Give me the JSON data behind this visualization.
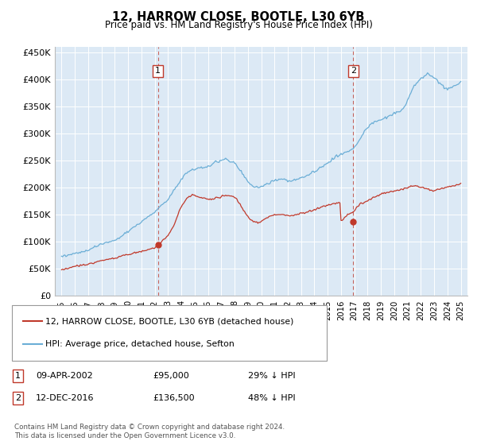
{
  "title": "12, HARROW CLOSE, BOOTLE, L30 6YB",
  "subtitle": "Price paid vs. HM Land Registry's House Price Index (HPI)",
  "hpi_color": "#6baed6",
  "price_color": "#c0392b",
  "plot_bg_color": "#dce9f5",
  "grid_color": "#ffffff",
  "ylim": [
    0,
    460000
  ],
  "yticks": [
    0,
    50000,
    100000,
    150000,
    200000,
    250000,
    300000,
    350000,
    400000,
    450000
  ],
  "xlim_start": 1995,
  "xlim_end": 2025,
  "marker1_x": 2002.25,
  "marker1_y": 95000,
  "marker2_x": 2016.92,
  "marker2_y": 136500,
  "legend_line1": "12, HARROW CLOSE, BOOTLE, L30 6YB (detached house)",
  "legend_line2": "HPI: Average price, detached house, Sefton",
  "ann1_date": "09-APR-2002",
  "ann1_price": "£95,000",
  "ann1_hpi": "29% ↓ HPI",
  "ann2_date": "12-DEC-2016",
  "ann2_price": "£136,500",
  "ann2_hpi": "48% ↓ HPI",
  "footer": "Contains HM Land Registry data © Crown copyright and database right 2024.\nThis data is licensed under the Open Government Licence v3.0.",
  "hpi_x": [
    1995.0,
    1995.083,
    1995.167,
    1995.25,
    1995.333,
    1995.417,
    1995.5,
    1995.583,
    1995.667,
    1995.75,
    1995.833,
    1995.917,
    1996.0,
    1996.083,
    1996.167,
    1996.25,
    1996.333,
    1996.417,
    1996.5,
    1996.583,
    1996.667,
    1996.75,
    1996.833,
    1996.917,
    1997.0,
    1997.083,
    1997.167,
    1997.25,
    1997.333,
    1997.417,
    1997.5,
    1997.583,
    1997.667,
    1997.75,
    1997.833,
    1997.917,
    1998.0,
    1998.083,
    1998.167,
    1998.25,
    1998.333,
    1998.417,
    1998.5,
    1998.583,
    1998.667,
    1998.75,
    1998.833,
    1998.917,
    1999.0,
    1999.083,
    1999.167,
    1999.25,
    1999.333,
    1999.417,
    1999.5,
    1999.583,
    1999.667,
    1999.75,
    1999.833,
    1999.917,
    2000.0,
    2000.083,
    2000.167,
    2000.25,
    2000.333,
    2000.417,
    2000.5,
    2000.583,
    2000.667,
    2000.75,
    2000.833,
    2000.917,
    2001.0,
    2001.083,
    2001.167,
    2001.25,
    2001.333,
    2001.417,
    2001.5,
    2001.583,
    2001.667,
    2001.75,
    2001.833,
    2001.917,
    2002.0,
    2002.083,
    2002.167,
    2002.25,
    2002.333,
    2002.417,
    2002.5,
    2002.583,
    2002.667,
    2002.75,
    2002.833,
    2002.917,
    2003.0,
    2003.083,
    2003.167,
    2003.25,
    2003.333,
    2003.417,
    2003.5,
    2003.583,
    2003.667,
    2003.75,
    2003.833,
    2003.917,
    2004.0,
    2004.083,
    2004.167,
    2004.25,
    2004.333,
    2004.417,
    2004.5,
    2004.583,
    2004.667,
    2004.75,
    2004.833,
    2004.917,
    2005.0,
    2005.083,
    2005.167,
    2005.25,
    2005.333,
    2005.417,
    2005.5,
    2005.583,
    2005.667,
    2005.75,
    2005.833,
    2005.917,
    2006.0,
    2006.083,
    2006.167,
    2006.25,
    2006.333,
    2006.417,
    2006.5,
    2006.583,
    2006.667,
    2006.75,
    2006.833,
    2006.917,
    2007.0,
    2007.083,
    2007.167,
    2007.25,
    2007.333,
    2007.417,
    2007.5,
    2007.583,
    2007.667,
    2007.75,
    2007.833,
    2007.917,
    2008.0,
    2008.083,
    2008.167,
    2008.25,
    2008.333,
    2008.417,
    2008.5,
    2008.583,
    2008.667,
    2008.75,
    2008.833,
    2008.917,
    2009.0,
    2009.083,
    2009.167,
    2009.25,
    2009.333,
    2009.417,
    2009.5,
    2009.583,
    2009.667,
    2009.75,
    2009.833,
    2009.917,
    2010.0,
    2010.083,
    2010.167,
    2010.25,
    2010.333,
    2010.417,
    2010.5,
    2010.583,
    2010.667,
    2010.75,
    2010.833,
    2010.917,
    2011.0,
    2011.083,
    2011.167,
    2011.25,
    2011.333,
    2011.417,
    2011.5,
    2011.583,
    2011.667,
    2011.75,
    2011.833,
    2011.917,
    2012.0,
    2012.083,
    2012.167,
    2012.25,
    2012.333,
    2012.417,
    2012.5,
    2012.583,
    2012.667,
    2012.75,
    2012.833,
    2012.917,
    2013.0,
    2013.083,
    2013.167,
    2013.25,
    2013.333,
    2013.417,
    2013.5,
    2013.583,
    2013.667,
    2013.75,
    2013.833,
    2013.917,
    2014.0,
    2014.083,
    2014.167,
    2014.25,
    2014.333,
    2014.417,
    2014.5,
    2014.583,
    2014.667,
    2014.75,
    2014.833,
    2014.917,
    2015.0,
    2015.083,
    2015.167,
    2015.25,
    2015.333,
    2015.417,
    2015.5,
    2015.583,
    2015.667,
    2015.75,
    2015.833,
    2015.917,
    2016.0,
    2016.083,
    2016.167,
    2016.25,
    2016.333,
    2016.417,
    2016.5,
    2016.583,
    2016.667,
    2016.75,
    2016.833,
    2016.917,
    2017.0,
    2017.083,
    2017.167,
    2017.25,
    2017.333,
    2017.417,
    2017.5,
    2017.583,
    2017.667,
    2017.75,
    2017.833,
    2017.917,
    2018.0,
    2018.083,
    2018.167,
    2018.25,
    2018.333,
    2018.417,
    2018.5,
    2018.583,
    2018.667,
    2018.75,
    2018.833,
    2018.917,
    2019.0,
    2019.083,
    2019.167,
    2019.25,
    2019.333,
    2019.417,
    2019.5,
    2019.583,
    2019.667,
    2019.75,
    2019.833,
    2019.917,
    2020.0,
    2020.083,
    2020.167,
    2020.25,
    2020.333,
    2020.417,
    2020.5,
    2020.583,
    2020.667,
    2020.75,
    2020.833,
    2020.917,
    2021.0,
    2021.083,
    2021.167,
    2021.25,
    2021.333,
    2021.417,
    2021.5,
    2021.583,
    2021.667,
    2021.75,
    2021.833,
    2021.917,
    2022.0,
    2022.083,
    2022.167,
    2022.25,
    2022.333,
    2022.417,
    2022.5,
    2022.583,
    2022.667,
    2022.75,
    2022.833,
    2022.917,
    2023.0,
    2023.083,
    2023.167,
    2023.25,
    2023.333,
    2023.417,
    2023.5,
    2023.583,
    2023.667,
    2023.75,
    2023.833,
    2023.917,
    2024.0,
    2024.083,
    2024.167,
    2024.25,
    2024.333,
    2024.417,
    2024.5,
    2024.583,
    2024.667,
    2024.75,
    2024.833,
    2024.917,
    2025.0
  ],
  "hpi_y": [
    73000,
    73500,
    74000,
    74500,
    75000,
    75500,
    76000,
    76200,
    76500,
    77000,
    77200,
    77500,
    78000,
    78500,
    79000,
    79500,
    80000,
    80500,
    81000,
    81500,
    82000,
    82500,
    83000,
    83500,
    84000,
    85000,
    86000,
    87000,
    88000,
    89000,
    90000,
    91000,
    92000,
    93000,
    94000,
    95000,
    96000,
    96500,
    97000,
    97500,
    98000,
    98500,
    99000,
    99500,
    100000,
    100500,
    101000,
    101500,
    102000,
    103000,
    104500,
    106000,
    107500,
    109000,
    110500,
    112000,
    113500,
    115000,
    116500,
    118000,
    119000,
    120500,
    122000,
    123500,
    125000,
    126500,
    128000,
    129500,
    131000,
    132500,
    134000,
    135500,
    137000,
    138500,
    140000,
    141500,
    143000,
    144500,
    146000,
    147500,
    149000,
    150500,
    152000,
    153500,
    155000,
    157000,
    159000,
    161000,
    163000,
    165000,
    167000,
    169000,
    171000,
    173000,
    175000,
    177000,
    179000,
    182000,
    185000,
    188000,
    191000,
    194000,
    197000,
    200000,
    203000,
    206000,
    209000,
    212000,
    215000,
    218000,
    221000,
    224000,
    227000,
    228000,
    229000,
    230000,
    231000,
    232000,
    232500,
    233000,
    233500,
    234000,
    234500,
    235000,
    235500,
    236000,
    236500,
    237000,
    237500,
    238000,
    238500,
    239000,
    239500,
    240000,
    241000,
    242000,
    243000,
    244000,
    245000,
    246000,
    247000,
    248000,
    249000,
    250000,
    251000,
    251500,
    252000,
    252500,
    253000,
    252000,
    251000,
    250000,
    249000,
    248000,
    247000,
    246000,
    245000,
    243000,
    241000,
    238000,
    235000,
    232000,
    229000,
    226000,
    223000,
    220000,
    217000,
    214000,
    211000,
    209000,
    207000,
    205000,
    204000,
    203000,
    202000,
    201000,
    200500,
    200000,
    200000,
    200500,
    201000,
    202000,
    203000,
    204000,
    205000,
    206000,
    207000,
    208000,
    209000,
    210000,
    211000,
    212000,
    213000,
    213500,
    214000,
    214500,
    215000,
    215500,
    216000,
    215500,
    215000,
    214500,
    214000,
    213500,
    213000,
    213000,
    213000,
    213000,
    213500,
    214000,
    214500,
    215000,
    215500,
    216000,
    216500,
    217000,
    217500,
    218000,
    219000,
    220000,
    221000,
    222000,
    223000,
    224000,
    225000,
    226000,
    227000,
    228000,
    229000,
    230500,
    232000,
    233500,
    235000,
    236500,
    238000,
    239500,
    241000,
    242500,
    244000,
    245000,
    246000,
    247500,
    249000,
    250500,
    252000,
    253500,
    255000,
    256000,
    257000,
    258000,
    259000,
    260000,
    261000,
    262000,
    263000,
    264000,
    265000,
    266000,
    267000,
    268000,
    269000,
    270000,
    271000,
    272000,
    274000,
    276000,
    279000,
    282000,
    286000,
    289000,
    293000,
    296000,
    299000,
    302000,
    305000,
    308000,
    311000,
    313000,
    315000,
    317000,
    319000,
    320000,
    321000,
    322000,
    323000,
    323500,
    324000,
    324500,
    325000,
    326000,
    327000,
    328000,
    329000,
    330000,
    331000,
    332000,
    333000,
    334000,
    335000,
    336000,
    337000,
    338000,
    339000,
    340000,
    340000,
    341000,
    342000,
    343000,
    345000,
    347000,
    350000,
    355000,
    360000,
    365000,
    370000,
    375000,
    380000,
    385000,
    388000,
    390000,
    392000,
    394000,
    396000,
    398000,
    400000,
    402000,
    404000,
    406000,
    408000,
    409000,
    410000,
    409000,
    408000,
    407000,
    406000,
    405000,
    403000,
    401000,
    399000,
    397000,
    395000,
    393000,
    391000,
    389000,
    387000,
    385000,
    384000,
    383000,
    382000,
    382500,
    383000,
    384000,
    385000,
    386000,
    387000,
    388000,
    389000,
    390000,
    392000,
    394000,
    396000
  ],
  "price_x": [
    1995.0,
    1995.083,
    1995.167,
    1995.25,
    1995.333,
    1995.417,
    1995.5,
    1995.583,
    1995.667,
    1995.75,
    1995.833,
    1995.917,
    1996.0,
    1996.083,
    1996.167,
    1996.25,
    1996.333,
    1996.417,
    1996.5,
    1996.583,
    1996.667,
    1996.75,
    1996.833,
    1996.917,
    1997.0,
    1997.083,
    1997.167,
    1997.25,
    1997.333,
    1997.417,
    1997.5,
    1997.583,
    1997.667,
    1997.75,
    1997.833,
    1997.917,
    1998.0,
    1998.083,
    1998.167,
    1998.25,
    1998.333,
    1998.417,
    1998.5,
    1998.583,
    1998.667,
    1998.75,
    1998.833,
    1998.917,
    1999.0,
    1999.083,
    1999.167,
    1999.25,
    1999.333,
    1999.417,
    1999.5,
    1999.583,
    1999.667,
    1999.75,
    1999.833,
    1999.917,
    2000.0,
    2000.083,
    2000.167,
    2000.25,
    2000.333,
    2000.417,
    2000.5,
    2000.583,
    2000.667,
    2000.75,
    2000.833,
    2000.917,
    2001.0,
    2001.083,
    2001.167,
    2001.25,
    2001.333,
    2001.417,
    2001.5,
    2001.583,
    2001.667,
    2001.75,
    2001.833,
    2001.917,
    2002.0,
    2002.083,
    2002.167,
    2002.25,
    2002.333,
    2002.417,
    2002.5,
    2002.583,
    2002.667,
    2002.75,
    2002.833,
    2002.917,
    2003.0,
    2003.083,
    2003.167,
    2003.25,
    2003.333,
    2003.417,
    2003.5,
    2003.583,
    2003.667,
    2003.75,
    2003.833,
    2003.917,
    2004.0,
    2004.083,
    2004.167,
    2004.25,
    2004.333,
    2004.417,
    2004.5,
    2004.583,
    2004.667,
    2004.75,
    2004.833,
    2004.917,
    2005.0,
    2005.083,
    2005.167,
    2005.25,
    2005.333,
    2005.417,
    2005.5,
    2005.583,
    2005.667,
    2005.75,
    2005.833,
    2005.917,
    2006.0,
    2006.083,
    2006.167,
    2006.25,
    2006.333,
    2006.417,
    2006.5,
    2006.583,
    2006.667,
    2006.75,
    2006.833,
    2006.917,
    2007.0,
    2007.083,
    2007.167,
    2007.25,
    2007.333,
    2007.417,
    2007.5,
    2007.583,
    2007.667,
    2007.75,
    2007.833,
    2007.917,
    2008.0,
    2008.083,
    2008.167,
    2008.25,
    2008.333,
    2008.417,
    2008.5,
    2008.583,
    2008.667,
    2008.75,
    2008.833,
    2008.917,
    2009.0,
    2009.083,
    2009.167,
    2009.25,
    2009.333,
    2009.417,
    2009.5,
    2009.583,
    2009.667,
    2009.75,
    2009.833,
    2009.917,
    2010.0,
    2010.083,
    2010.167,
    2010.25,
    2010.333,
    2010.417,
    2010.5,
    2010.583,
    2010.667,
    2010.75,
    2010.833,
    2010.917,
    2011.0,
    2011.083,
    2011.167,
    2011.25,
    2011.333,
    2011.417,
    2011.5,
    2011.583,
    2011.667,
    2011.75,
    2011.833,
    2011.917,
    2012.0,
    2012.083,
    2012.167,
    2012.25,
    2012.333,
    2012.417,
    2012.5,
    2012.583,
    2012.667,
    2012.75,
    2012.833,
    2012.917,
    2013.0,
    2013.083,
    2013.167,
    2013.25,
    2013.333,
    2013.417,
    2013.5,
    2013.583,
    2013.667,
    2013.75,
    2013.833,
    2013.917,
    2014.0,
    2014.083,
    2014.167,
    2014.25,
    2014.333,
    2014.417,
    2014.5,
    2014.583,
    2014.667,
    2014.75,
    2014.833,
    2014.917,
    2015.0,
    2015.083,
    2015.167,
    2015.25,
    2015.333,
    2015.417,
    2015.5,
    2015.583,
    2015.667,
    2015.75,
    2015.833,
    2015.917,
    2016.0,
    2016.083,
    2016.167,
    2016.25,
    2016.333,
    2016.417,
    2016.5,
    2016.583,
    2016.667,
    2016.75,
    2016.833,
    2016.917,
    2017.0,
    2017.083,
    2017.167,
    2017.25,
    2017.333,
    2017.417,
    2017.5,
    2017.583,
    2017.667,
    2017.75,
    2017.833,
    2017.917,
    2018.0,
    2018.083,
    2018.167,
    2018.25,
    2018.333,
    2018.417,
    2018.5,
    2018.583,
    2018.667,
    2018.75,
    2018.833,
    2018.917,
    2019.0,
    2019.083,
    2019.167,
    2019.25,
    2019.333,
    2019.417,
    2019.5,
    2019.583,
    2019.667,
    2019.75,
    2019.833,
    2019.917,
    2020.0,
    2020.083,
    2020.167,
    2020.25,
    2020.333,
    2020.417,
    2020.5,
    2020.583,
    2020.667,
    2020.75,
    2020.833,
    2020.917,
    2021.0,
    2021.083,
    2021.167,
    2021.25,
    2021.333,
    2021.417,
    2021.5,
    2021.583,
    2021.667,
    2021.75,
    2021.833,
    2021.917,
    2022.0,
    2022.083,
    2022.167,
    2022.25,
    2022.333,
    2022.417,
    2022.5,
    2022.583,
    2022.667,
    2022.75,
    2022.833,
    2022.917,
    2023.0,
    2023.083,
    2023.167,
    2023.25,
    2023.333,
    2023.417,
    2023.5,
    2023.583,
    2023.667,
    2023.75,
    2023.833,
    2023.917,
    2024.0,
    2024.083,
    2024.167,
    2024.25,
    2024.333,
    2024.417,
    2024.5,
    2024.583,
    2024.667,
    2024.75,
    2024.833,
    2024.917,
    2025.0
  ],
  "price_y": [
    48000,
    48500,
    49000,
    49500,
    50000,
    50500,
    51000,
    51500,
    52000,
    52500,
    53000,
    53500,
    54000,
    54500,
    55000,
    55500,
    56000,
    56300,
    56600,
    57000,
    57400,
    57800,
    58200,
    58600,
    59000,
    59500,
    60000,
    60500,
    61000,
    61500,
    62000,
    62500,
    63000,
    63500,
    64000,
    64500,
    65000,
    65500,
    66000,
    66300,
    66600,
    67000,
    67500,
    68000,
    68500,
    69000,
    69500,
    70000,
    70500,
    71000,
    71500,
    72000,
    72500,
    73000,
    73500,
    74000,
    74500,
    75000,
    75500,
    76000,
    76500,
    77000,
    77500,
    78000,
    78500,
    79000,
    79500,
    80000,
    80500,
    81000,
    81500,
    82000,
    82500,
    83000,
    83500,
    84000,
    84500,
    85000,
    85500,
    86000,
    86500,
    87000,
    87500,
    88000,
    89000,
    90000,
    91500,
    93000,
    95000,
    97000,
    99000,
    101000,
    103000,
    105000,
    107000,
    109000,
    112000,
    115000,
    118000,
    122000,
    126000,
    130000,
    135000,
    140000,
    145000,
    150000,
    155000,
    160000,
    165000,
    168000,
    171000,
    174000,
    177000,
    180000,
    182000,
    183000,
    184000,
    185000,
    185500,
    186000,
    185000,
    184000,
    183500,
    183000,
    182500,
    182000,
    181500,
    181000,
    180500,
    180000,
    179500,
    179000,
    178500,
    178000,
    178500,
    179000,
    179500,
    180000,
    180500,
    181000,
    181500,
    182000,
    182500,
    183000,
    183500,
    184000,
    184500,
    185000,
    185500,
    186000,
    185500,
    185000,
    184500,
    184000,
    183500,
    183000,
    182000,
    180000,
    178000,
    175000,
    172000,
    169000,
    165000,
    161000,
    158000,
    155000,
    152000,
    149000,
    146000,
    144000,
    142000,
    140500,
    139000,
    138000,
    137000,
    136500,
    136000,
    136000,
    136500,
    137000,
    138000,
    139000,
    140500,
    142000,
    143000,
    144000,
    145000,
    146000,
    147000,
    147500,
    148000,
    148500,
    149000,
    149500,
    150000,
    150500,
    151000,
    151000,
    151000,
    150500,
    150000,
    149500,
    149000,
    148500,
    148000,
    148000,
    148000,
    148000,
    148500,
    149000,
    149500,
    150000,
    150500,
    151000,
    151500,
    152000,
    152500,
    153000,
    153500,
    154000,
    154500,
    155000,
    155500,
    156000,
    156500,
    157000,
    157500,
    158000,
    158500,
    159500,
    160500,
    161500,
    162500,
    163500,
    164500,
    165000,
    165500,
    166000,
    166500,
    167000,
    167500,
    168000,
    168500,
    169000,
    169500,
    170000,
    170500,
    171000,
    171500,
    172000,
    172500,
    173000,
    139000,
    140000,
    142000,
    144000,
    146000,
    148000,
    150000,
    151000,
    152000,
    153000,
    154000,
    155000,
    157000,
    160000,
    163000,
    166000,
    168000,
    169000,
    170000,
    171000,
    172000,
    173000,
    174000,
    175000,
    176000,
    177000,
    178000,
    179000,
    180000,
    181000,
    182000,
    183000,
    184000,
    185000,
    186000,
    187000,
    188000,
    188500,
    189000,
    189500,
    190000,
    190500,
    191000,
    191500,
    192000,
    192500,
    193000,
    193500,
    194000,
    194500,
    195000,
    195500,
    196000,
    196500,
    197000,
    197500,
    198000,
    198500,
    199000,
    199500,
    200000,
    200500,
    201000,
    201500,
    202000,
    202500,
    203000,
    203000,
    202500,
    202000,
    201500,
    201000,
    200500,
    200000,
    199500,
    199000,
    198500,
    198000,
    197500,
    197000,
    196500,
    196000,
    195500,
    195000,
    195000,
    195500,
    196000,
    196500,
    197000,
    197500,
    198000,
    198500,
    199000,
    199500,
    200000,
    200500,
    201000,
    201500,
    202000,
    202500,
    203000,
    203500,
    204000,
    204500,
    205000,
    205500,
    206000,
    206500,
    207000
  ]
}
